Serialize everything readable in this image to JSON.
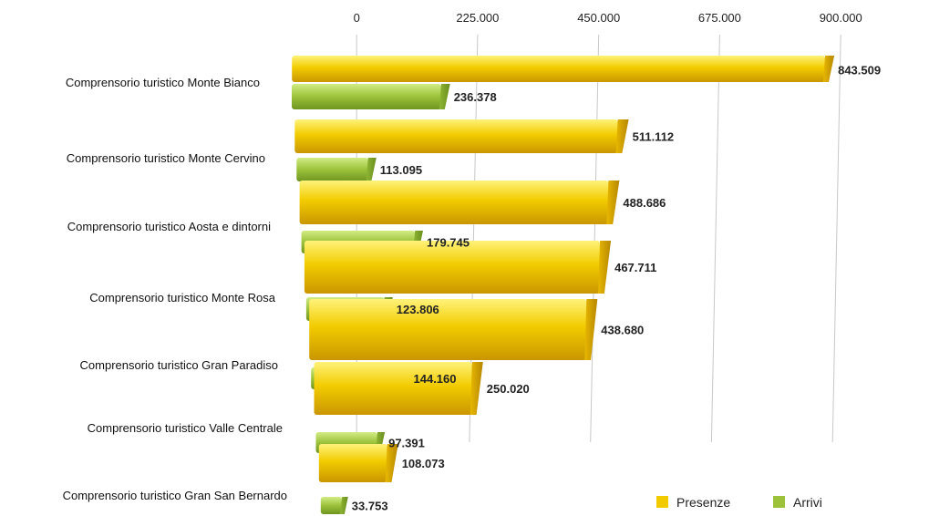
{
  "chart_data": {
    "type": "bar",
    "orientation": "horizontal",
    "categories": [
      "Comprensorio turistico Monte Bianco",
      "Comprensorio turistico Monte Cervino",
      "Comprensorio turistico Aosta e dintorni",
      "Comprensorio turistico Monte Rosa",
      "Comprensorio turistico Gran Paradiso",
      "Comprensorio turistico Valle Centrale",
      "Comprensorio turistico Gran San Bernardo"
    ],
    "series": [
      {
        "name": "Presenze",
        "color": "#f2cc00",
        "values": [
          843509,
          511112,
          488686,
          467711,
          438680,
          250020,
          108073
        ],
        "labels": [
          "843.509",
          "511.112",
          "488.686",
          "467.711",
          "438.680",
          "250.020",
          "108.073"
        ]
      },
      {
        "name": "Arrivi",
        "color": "#9cc23b",
        "values": [
          236378,
          113095,
          179745,
          123806,
          144160,
          97391,
          33753
        ],
        "labels": [
          "236.378",
          "113.095",
          "179.745",
          "123.806",
          "144.160",
          "97.391",
          "33.753"
        ]
      }
    ],
    "xlim": [
      0,
      900000
    ],
    "x_ticks": [
      0,
      225000,
      450000,
      675000,
      900000
    ],
    "x_tick_labels": [
      "0",
      "225.000",
      "450.000",
      "675.000",
      "900.000"
    ],
    "x_axis_position": "top",
    "grid": true,
    "legend": "bottom-right"
  }
}
